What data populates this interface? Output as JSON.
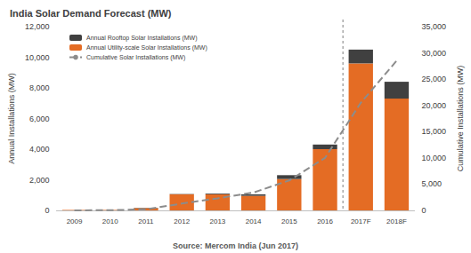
{
  "chart_data": {
    "type": "bar",
    "title": "India Solar Demand Forecast (MW)",
    "annotations": [
      "Source: Mercom India (Jun 2017)"
    ],
    "y_label": "Annual Installations (MW)",
    "y2_label": "Cumulative Installations (MW)",
    "categories": [
      "2009",
      "2010",
      "2011",
      "2012",
      "2013",
      "2014",
      "2015",
      "2016",
      "2017F",
      "2018F"
    ],
    "stacked": true,
    "grid": false,
    "legend": "upper left",
    "series": [
      {
        "name": "Annual Rooftop Solar Installations (MW)",
        "type": "bar",
        "color": "#404040",
        "values": [
          0,
          0,
          20,
          20,
          50,
          100,
          250,
          300,
          900,
          1100
        ]
      },
      {
        "name": "Annual Utility-scale Solar Installations (MW)",
        "type": "bar",
        "color": "#e46c24",
        "values": [
          30,
          30,
          150,
          1050,
          1050,
          950,
          2050,
          4000,
          9600,
          7300
        ]
      },
      {
        "name": "Cumulative Solar Installations (MW)",
        "type": "line",
        "axis": "y2",
        "color": "#8c8c8c",
        "line_style": "dashed",
        "values": [
          10,
          40,
          200,
          1300,
          2300,
          3400,
          5700,
          10000,
          20500,
          28500
        ]
      }
    ],
    "ylim": [
      0,
      12000
    ],
    "yticks": [
      0,
      {
        "value": 2000,
        "label": "2,000"
      },
      {
        "value": 4000,
        "label": "4,000"
      },
      {
        "value": 6000,
        "label": "6,000"
      },
      {
        "value": 8000,
        "label": "8,000"
      },
      {
        "value": 10000,
        "label": "10,000"
      },
      {
        "value": 12000,
        "label": "12,000"
      }
    ],
    "y2lim": [
      0,
      35000
    ],
    "y2ticks": [
      0,
      {
        "value": 5000,
        "label": "5,000"
      },
      {
        "value": 10000,
        "label": "10,000"
      },
      {
        "value": 15000,
        "label": "15,000"
      },
      {
        "value": 20000,
        "label": "20,000"
      },
      {
        "value": 25000,
        "label": "25,000"
      },
      {
        "value": 30000,
        "label": "30,000"
      },
      {
        "value": 35000,
        "label": "35,000"
      }
    ]
  }
}
